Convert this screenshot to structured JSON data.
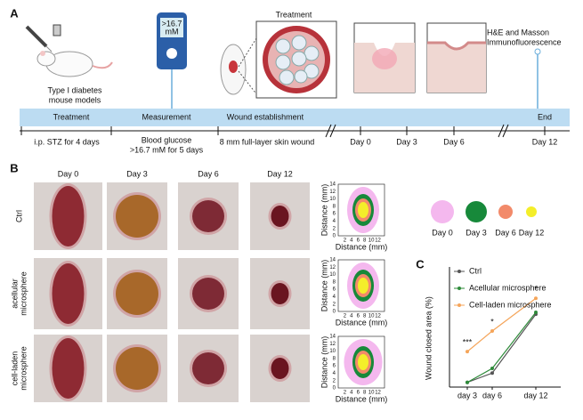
{
  "panel_a": {
    "label": "A",
    "mouse_label": [
      "Type I diabetes",
      "mouse models"
    ],
    "meter_display": [
      ">16.7",
      "mM"
    ],
    "treatment_title": "Treatment",
    "analysis": [
      "H&E and Masson",
      "Immunofluorescence"
    ],
    "timeline_stages": [
      "Treatment",
      "Measurement",
      "Wound establishment",
      "End"
    ],
    "timeline_notes": [
      "i.p. STZ for 4 days",
      "Blood glucose",
      ">16.7 mM for 5 days",
      "8 mm full-layer skin wound"
    ],
    "timeline_days": [
      "Day 0",
      "Day 3",
      "Day 6",
      "Day 12"
    ]
  },
  "panel_b": {
    "label": "B",
    "columns": [
      "Day 0",
      "Day 3",
      "Day 6",
      "Day 12"
    ],
    "rows": [
      [
        "Ctrl"
      ],
      [
        "acellular",
        "microsphere"
      ],
      [
        "cell-laden",
        "microsphere"
      ]
    ],
    "contour_axis_label": "Distance (mm)",
    "contour_yticks": [
      0,
      2,
      4,
      6,
      8,
      10,
      12,
      14
    ],
    "contour_xticks": [
      2,
      4,
      6,
      8,
      10,
      12
    ],
    "legend": [
      {
        "name": "Day 0",
        "color": "#f4b8ee"
      },
      {
        "name": "Day 3",
        "color": "#17893a"
      },
      {
        "name": "Day 6",
        "color": "#f28a6a"
      },
      {
        "name": "Day 12",
        "color": "#f4ee2a"
      }
    ]
  },
  "chart_data": {
    "type": "line",
    "panel_label": "C",
    "y_label": "Wound closed area (%)",
    "categories": [
      "day 3",
      "day 6",
      "day 12"
    ],
    "ylim": [
      0,
      100
    ],
    "series": [
      {
        "name": "Ctrl",
        "color": "#555555",
        "values": [
          5,
          15,
          78
        ]
      },
      {
        "name": "Acellular microsphere",
        "color": "#2e8b3a",
        "values": [
          5,
          20,
          80
        ]
      },
      {
        "name": "Cell-laden microsphere",
        "color": "#f5a55a",
        "values": [
          38,
          60,
          95
        ]
      }
    ],
    "annotations": [
      "***",
      "*",
      "*"
    ]
  }
}
